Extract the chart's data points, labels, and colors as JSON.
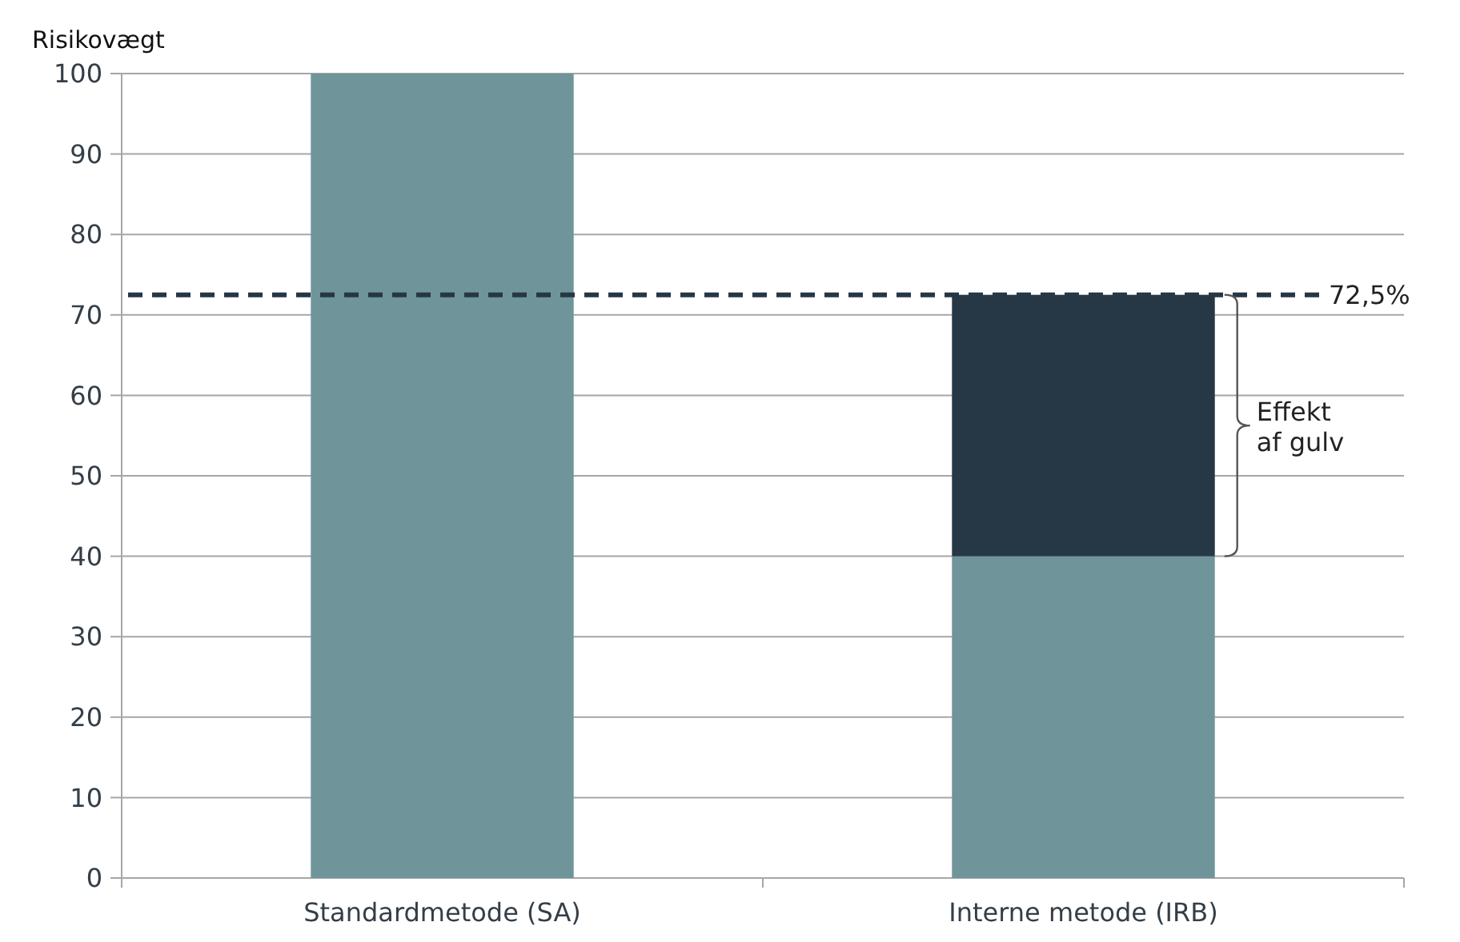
{
  "chart_data": {
    "type": "bar",
    "stacked": true,
    "ylabel": "Risikovægt",
    "categories": [
      "Standardmetode (SA)",
      "Interne metode (IRB)"
    ],
    "series": [
      {
        "color": "#6f959a",
        "values": [
          100,
          40
        ]
      },
      {
        "color": "#263746",
        "values": [
          null,
          32.5
        ]
      }
    ],
    "ylim": [
      0,
      100
    ],
    "yticks": [
      0,
      10,
      20,
      30,
      40,
      50,
      60,
      70,
      80,
      90,
      100
    ],
    "grid": "y",
    "ref_lines": [
      {
        "axis": "y",
        "value": 72.5,
        "label": "72,5%",
        "color": "#263746",
        "line_style": "dashed"
      }
    ],
    "annotations": [
      "Effekt af gulv"
    ]
  }
}
